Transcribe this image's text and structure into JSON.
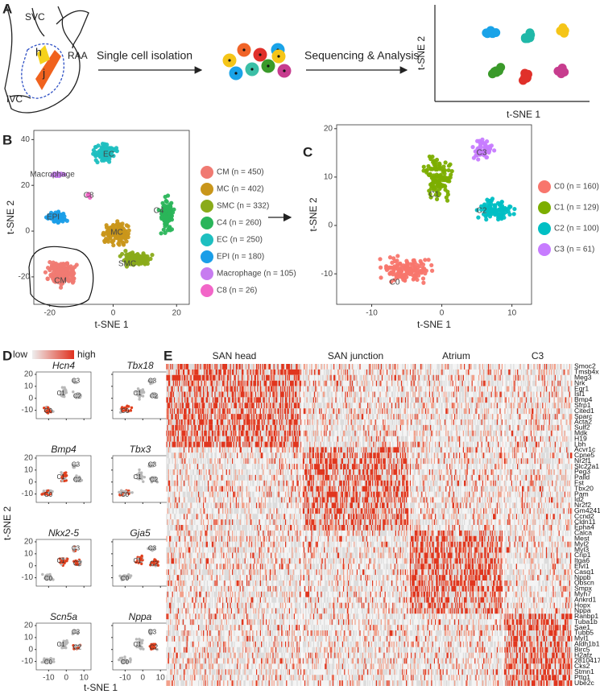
{
  "panel_labels": [
    "A",
    "B",
    "C",
    "D",
    "E"
  ],
  "panel_a": {
    "anatomy_labels": [
      "SVC",
      "RAA",
      "IVC",
      "h",
      "j"
    ],
    "step1": "Single cell isolation",
    "step2": "Sequencing & Analysis",
    "x_label": "t-SNE 1",
    "y_label": "t-SNE 2"
  },
  "panel_b": {
    "x_label": "t-SNE 1",
    "y_label": "t-SNE 2",
    "xlim": [
      -25,
      24
    ],
    "ylim": [
      -32,
      44
    ],
    "xticks": [
      -20,
      0,
      20
    ],
    "yticks": [
      -20,
      0,
      20,
      40
    ],
    "cluster_labels": [
      "CM",
      "MC",
      "SMC",
      "C4",
      "EC",
      "EPI",
      "Macrophage",
      "C8"
    ],
    "legend": [
      "CM (n = 450)",
      "MC (n = 402)",
      "SMC (n = 332)",
      "C4 (n = 260)",
      "EC (n = 250)",
      "EPI (n = 180)",
      "Macrophage (n = 105)",
      "C8 (n = 26)"
    ],
    "colors": [
      "#f07a72",
      "#c9961a",
      "#8aab1a",
      "#2ab55a",
      "#1ebfc0",
      "#1a9ee8",
      "#c77cf0",
      "#f266c8"
    ]
  },
  "panel_c": {
    "x_label": "t-SNE 1",
    "y_label": "t-SNE 2",
    "xlim": [
      -15,
      12.8
    ],
    "ylim": [
      -16.3,
      20.8
    ],
    "xticks": [
      -10,
      0,
      10
    ],
    "yticks": [
      -10,
      0,
      10,
      20
    ],
    "cluster_labels": [
      "C0",
      "C1",
      "C2",
      "C3"
    ],
    "legend": [
      "C0 (n = 160)",
      "C1 (n = 129)",
      "C2 (n = 100)",
      "C3 (n = 61)"
    ],
    "colors": [
      "#f8766d",
      "#7cae00",
      "#00bfc4",
      "#c77cff"
    ]
  },
  "panel_d": {
    "scale_low": "low",
    "scale_high": "high",
    "genes": [
      "Hcn4",
      "Tbx18",
      "Bmp4",
      "Tbx3",
      "Nkx2-5",
      "Gja5",
      "Scn5a",
      "Nppa"
    ],
    "x_label": "t-SNE 1",
    "y_label": "t-SNE 2",
    "xlim": [
      -17,
      14
    ],
    "ylim": [
      -17,
      22
    ],
    "xticks": [
      -10,
      0,
      10
    ],
    "yticks": [
      -10,
      0,
      10,
      20
    ],
    "cluster_labels": [
      "C0",
      "C1",
      "C2",
      "C3"
    ]
  },
  "panel_e": {
    "groups": [
      "SAN head",
      "SAN junction",
      "Atrium",
      "C3"
    ],
    "genes": [
      "Smoc2",
      "Tmsb4x",
      "Meg3",
      "Nrk",
      "Egr1",
      "Isl1",
      "Bmp4",
      "Sfrp1",
      "Cited1",
      "Sparc",
      "Acta2",
      "Sulf2",
      "Mdk",
      "H19",
      "Lbh",
      "Acvr1c",
      "Cpne5",
      "Nr2f1",
      "Slc22a1",
      "Peg3",
      "Palld",
      "Fst",
      "Tbx20",
      "Pam",
      "Id2",
      "Nr2f2",
      "Gm42418",
      "Ccnd2",
      "Cldn11",
      "Epha4",
      "Calca",
      "Mest",
      "Myl2",
      "Myl3",
      "Crip1",
      "Itga6",
      "Elvl1",
      "Casq1",
      "Nppb",
      "Obscn",
      "Smpx",
      "Myh7",
      "Ankrd1",
      "Hopx",
      "Nppa",
      "Ranbp1",
      "Tuba1b",
      "Sae1",
      "Tubb5",
      "Myl1",
      "Aldh1b1",
      "Birc5",
      "H2afz",
      "2810417H13Rik",
      "Cks2",
      "Stmn1",
      "Pttg1",
      "Ube2c"
    ]
  }
}
